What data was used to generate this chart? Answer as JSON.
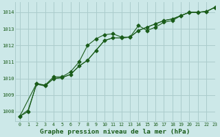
{
  "title": "Graphe pression niveau de la mer (hPa)",
  "bg_color": "#cce8e8",
  "grid_color": "#aacccc",
  "line_color": "#1a5c1a",
  "xlim": [
    -0.5,
    23
  ],
  "ylim": [
    1007.4,
    1014.6
  ],
  "yticks": [
    1008,
    1009,
    1010,
    1011,
    1012,
    1013,
    1014
  ],
  "xticks": [
    0,
    1,
    2,
    3,
    4,
    5,
    6,
    7,
    8,
    9,
    10,
    11,
    12,
    13,
    14,
    15,
    16,
    17,
    18,
    19,
    20,
    21,
    22,
    23
  ],
  "series1_x": [
    0,
    1,
    2,
    3,
    4,
    5,
    6,
    7,
    8,
    9,
    10,
    11,
    12,
    13,
    14,
    15,
    16,
    17,
    18,
    19,
    20,
    21,
    22,
    23
  ],
  "series1_y": [
    1007.7,
    1008.0,
    1009.7,
    1009.6,
    1010.1,
    1010.1,
    1010.4,
    1011.0,
    1012.0,
    1012.4,
    1012.65,
    1012.7,
    1012.5,
    1012.5,
    1013.2,
    1012.9,
    1013.1,
    1013.4,
    1013.5,
    1013.8,
    1014.0,
    1014.0,
    1014.05,
    1014.3
  ],
  "series2_x": [
    0,
    1,
    2,
    3,
    4,
    5,
    6,
    7,
    8,
    9,
    10,
    11,
    12,
    13,
    14,
    15,
    16,
    17,
    18,
    19,
    20,
    21,
    22,
    23
  ],
  "series2_y": [
    1007.7,
    1008.1,
    1009.65,
    1009.55,
    1010.0,
    1010.05,
    1010.25,
    1010.75,
    1011.1,
    1011.7,
    1012.3,
    1012.45,
    1012.45,
    1012.5,
    1012.9,
    1013.1,
    1013.3,
    1013.5,
    1013.6,
    1013.8,
    1014.0,
    1014.0,
    1014.05,
    1014.3
  ],
  "series3_x": [
    0,
    2,
    3,
    4,
    5,
    6,
    7,
    8,
    9,
    10,
    11,
    12,
    13,
    14,
    15,
    16,
    17,
    18,
    19,
    20,
    21,
    22,
    23
  ],
  "series3_y": [
    1007.7,
    1009.7,
    1009.55,
    1010.0,
    1010.05,
    1010.25,
    1010.75,
    1011.1,
    1011.7,
    1012.3,
    1012.45,
    1012.45,
    1012.5,
    1012.9,
    1013.1,
    1013.3,
    1013.5,
    1013.6,
    1013.8,
    1014.0,
    1014.0,
    1014.05,
    1014.3
  ],
  "ylabel_fontsize": 5.8,
  "xlabel_fontsize": 6.8,
  "title_color": "#1a5c1a"
}
